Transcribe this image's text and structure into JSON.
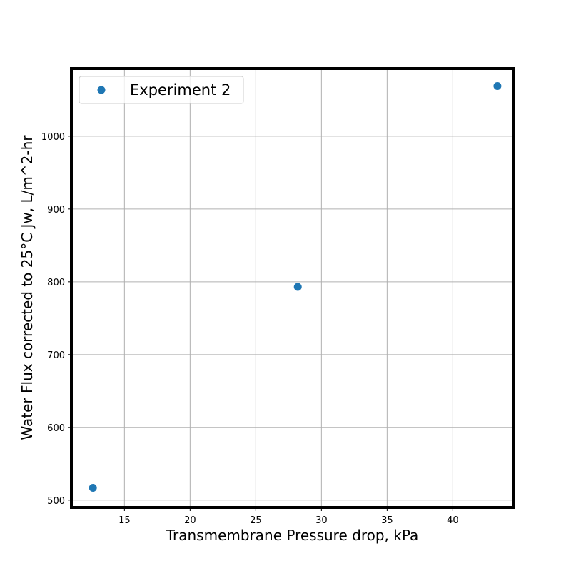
{
  "chart_data": {
    "type": "scatter",
    "title": "",
    "xlabel": "Transmembrane Pressure drop, kPa",
    "ylabel": "Water Flux corrected to 25°C Jw, L/m^2-hr",
    "xlim": [
      10.96,
      44.6
    ],
    "ylim": [
      490,
      1093
    ],
    "xticks": [
      15,
      20,
      25,
      30,
      35,
      40
    ],
    "yticks": [
      500,
      600,
      700,
      800,
      900,
      1000
    ],
    "grid": true,
    "legend_position": "top-left",
    "series": [
      {
        "name": "Experiment 2",
        "color": "#1f77b4",
        "marker": "circle",
        "points": [
          {
            "x": 12.6,
            "y": 517
          },
          {
            "x": 28.2,
            "y": 793
          },
          {
            "x": 43.4,
            "y": 1069
          }
        ]
      }
    ]
  }
}
